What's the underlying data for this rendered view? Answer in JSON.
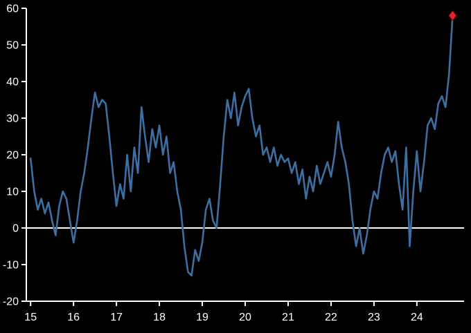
{
  "chart_data": {
    "type": "line",
    "title": "",
    "xlabel": "",
    "ylabel": "",
    "x_unit": "year",
    "points_per_year": 12,
    "xlim": [
      14.9,
      25.1
    ],
    "ylim": [
      -20,
      60
    ],
    "y_ticks": [
      -20,
      -10,
      0,
      10,
      20,
      30,
      40,
      50,
      60
    ],
    "x_ticks": [
      15,
      16,
      17,
      18,
      19,
      20,
      21,
      22,
      23,
      24
    ],
    "x_tick_labels": [
      "15",
      "16",
      "17",
      "18",
      "19",
      "20",
      "21",
      "22",
      "23",
      "24"
    ],
    "grid": false,
    "legend": "none",
    "zero_line": true,
    "years": [
      {
        "year": 15,
        "values": [
          19,
          10,
          5,
          8,
          4,
          7,
          2,
          -2,
          6,
          10,
          8,
          2
        ]
      },
      {
        "year": 16,
        "values": [
          -4,
          2,
          10,
          15,
          22,
          30,
          37,
          33,
          35,
          34,
          25,
          15
        ]
      },
      {
        "year": 17,
        "values": [
          6,
          12,
          8,
          20,
          10,
          22,
          15,
          33,
          25,
          18,
          27,
          22
        ]
      },
      {
        "year": 18,
        "values": [
          28,
          20,
          25,
          15,
          18,
          10,
          5,
          -5,
          -12,
          -13,
          -6,
          -9
        ]
      },
      {
        "year": 19,
        "values": [
          -4,
          5,
          8,
          2,
          0,
          12,
          25,
          35,
          30,
          37,
          28,
          33
        ]
      },
      {
        "year": 20,
        "values": [
          36,
          38,
          30,
          25,
          28,
          20,
          22,
          18,
          22,
          17,
          20,
          18
        ]
      },
      {
        "year": 21,
        "values": [
          19,
          15,
          18,
          12,
          16,
          8,
          14,
          10,
          17,
          12,
          15,
          18
        ]
      },
      {
        "year": 22,
        "values": [
          14,
          20,
          29,
          22,
          18,
          12,
          2,
          -5,
          0,
          -7,
          -2,
          5
        ]
      },
      {
        "year": 23,
        "values": [
          10,
          8,
          15,
          20,
          22,
          18,
          21,
          12,
          5,
          22,
          -5,
          10
        ]
      },
      {
        "year": 24,
        "values": [
          21,
          10,
          18,
          28,
          30,
          27,
          34,
          36,
          33,
          42,
          58
        ]
      }
    ],
    "latest_point_marker": {
      "x": 24.833,
      "y": 58,
      "shape": "diamond"
    },
    "colors": {
      "background": "#000000",
      "line": "#3d6fa3",
      "marker_fill": "#e8222a",
      "marker_edge": "#8b0000",
      "axis": "#ffffff",
      "text": "#ffffff"
    }
  }
}
